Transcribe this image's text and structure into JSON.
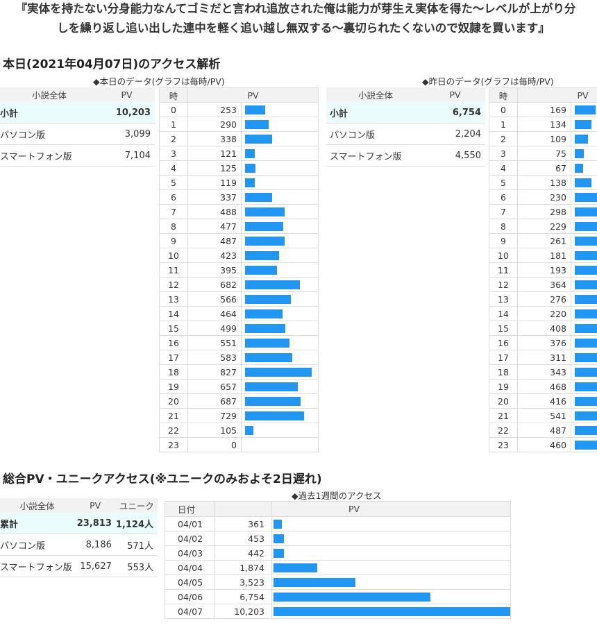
{
  "novel": {
    "title_line1": "『実体を持たない分身能力なんてゴミだと言われ追放された俺は能力が芽生え実体を得た〜レベルが上がり分",
    "title_line2": "しを繰り返し追い出した連中を軽く追い越し無双する〜裏切られたくないので奴隷を買います』"
  },
  "today_section": {
    "heading": "本日(2021年04月07日)のアクセス解析",
    "today_caption": "◆本日のデータ(グラフは毎時/PV)",
    "yesterday_caption": "◆昨日のデータ(グラフは毎時/PV)"
  },
  "today_summary": {
    "col_label": "小説全体",
    "col_pv": "PV",
    "rows": [
      {
        "label": "小計",
        "pv": "10,203"
      },
      {
        "label": "パソコン版",
        "pv": "3,099"
      },
      {
        "label": "スマートフォン版",
        "pv": "7,104"
      }
    ]
  },
  "yesterday_summary": {
    "col_label": "小説全体",
    "col_pv": "PV",
    "rows": [
      {
        "label": "小計",
        "pv": "6,754"
      },
      {
        "label": "パソコン版",
        "pv": "2,204"
      },
      {
        "label": "スマートフォン版",
        "pv": "4,550"
      }
    ]
  },
  "hourly_headers": {
    "hour": "時",
    "pv": "PV"
  },
  "chart_data": [
    {
      "type": "bar",
      "title": "◆本日のデータ(グラフは毎時/PV)",
      "categories": [
        "0",
        "1",
        "2",
        "3",
        "4",
        "5",
        "6",
        "7",
        "8",
        "9",
        "10",
        "11",
        "12",
        "13",
        "14",
        "15",
        "16",
        "17",
        "18",
        "19",
        "20",
        "21",
        "22",
        "23"
      ],
      "values": [
        253,
        290,
        338,
        121,
        125,
        119,
        337,
        488,
        477,
        487,
        423,
        395,
        682,
        566,
        464,
        499,
        551,
        583,
        827,
        657,
        687,
        729,
        105,
        0
      ]
    },
    {
      "type": "bar",
      "title": "◆昨日のデータ(グラフは毎時/PV)",
      "categories": [
        "0",
        "1",
        "2",
        "3",
        "4",
        "5",
        "6",
        "7",
        "8",
        "9",
        "10",
        "11",
        "12",
        "13",
        "14",
        "15",
        "16",
        "17",
        "18",
        "19",
        "20",
        "21",
        "22",
        "23"
      ],
      "values": [
        169,
        134,
        109,
        75,
        67,
        138,
        230,
        298,
        229,
        261,
        181,
        193,
        364,
        276,
        220,
        408,
        376,
        311,
        343,
        468,
        416,
        541,
        487,
        460
      ]
    },
    {
      "type": "bar",
      "title": "◆過去1週間のアクセス",
      "categories": [
        "04/01",
        "04/02",
        "04/03",
        "04/04",
        "04/05",
        "04/06",
        "04/07"
      ],
      "values": [
        361,
        453,
        442,
        1874,
        3523,
        6754,
        10203
      ]
    }
  ],
  "total_section": {
    "heading": "総合PV・ユニークアクセス(※ユニークのみおよそ2日遅れ)",
    "weekly_caption": "◆過去1週間のアクセス"
  },
  "total_summary": {
    "col_label": "小説全体",
    "col_pv": "PV",
    "col_unique": "ユニーク",
    "rows": [
      {
        "label": "累計",
        "pv": "23,813",
        "unique": "1,124人"
      },
      {
        "label": "パソコン版",
        "pv": "8,186",
        "unique": "571人"
      },
      {
        "label": "スマートフォン版",
        "pv": "15,627",
        "unique": "553人"
      }
    ]
  },
  "weekly_headers": {
    "date": "日付",
    "pv": "PV"
  },
  "colors": {
    "bar": "#2196f3",
    "highlight_row": "#eafcfc",
    "header_bg": "#f2f2f2"
  }
}
